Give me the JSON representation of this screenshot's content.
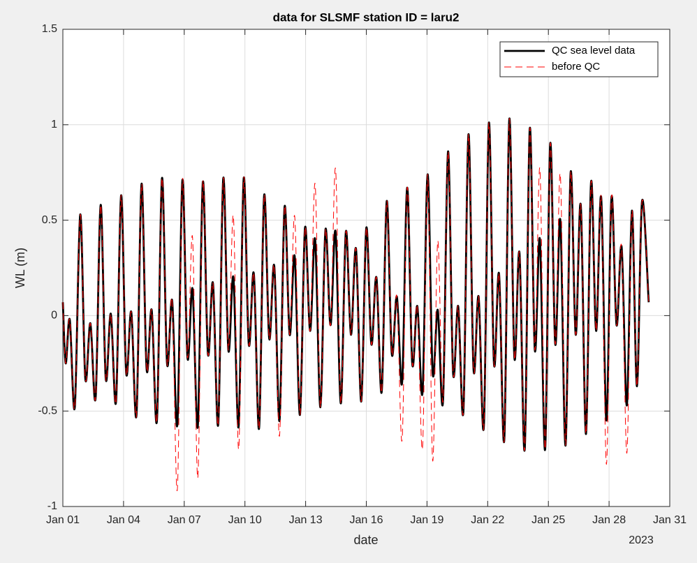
{
  "chart_data": {
    "type": "line",
    "title": "data for SLSMF station ID = laru2",
    "xlabel": "date",
    "ylabel": "WL (m)",
    "x_secondary_label": "2023",
    "xlim": [
      1,
      31
    ],
    "ylim": [
      -1,
      1.5
    ],
    "xticks": [
      {
        "value": 1,
        "label": "Jan 01"
      },
      {
        "value": 4,
        "label": "Jan 04"
      },
      {
        "value": 7,
        "label": "Jan 07"
      },
      {
        "value": 10,
        "label": "Jan 10"
      },
      {
        "value": 13,
        "label": "Jan 13"
      },
      {
        "value": 16,
        "label": "Jan 16"
      },
      {
        "value": 19,
        "label": "Jan 19"
      },
      {
        "value": 22,
        "label": "Jan 22"
      },
      {
        "value": 25,
        "label": "Jan 25"
      },
      {
        "value": 28,
        "label": "Jan 28"
      },
      {
        "value": 31,
        "label": "Jan 31"
      }
    ],
    "yticks": [
      -1,
      -0.5,
      0,
      0.5,
      1,
      1.5
    ],
    "grid": true,
    "legend_position": "northeast",
    "x": [
      1.0,
      1.14,
      1.34,
      1.59,
      1.86,
      2.11,
      2.36,
      2.62,
      2.87,
      3.12,
      3.37,
      3.63,
      3.88,
      4.13,
      4.38,
      4.64,
      4.89,
      5.14,
      5.39,
      5.65,
      5.9,
      6.15,
      6.4,
      6.66,
      6.91,
      7.16,
      7.41,
      7.67,
      7.92,
      8.17,
      8.42,
      8.68,
      8.93,
      9.18,
      9.43,
      9.69,
      9.94,
      10.19,
      10.44,
      10.7,
      10.95,
      11.2,
      11.45,
      11.71,
      11.96,
      12.21,
      12.46,
      12.72,
      12.97,
      13.22,
      13.47,
      13.73,
      13.98,
      14.23,
      14.48,
      14.74,
      14.99,
      15.24,
      15.49,
      15.75,
      16.0,
      16.25,
      16.5,
      16.76,
      17.01,
      17.26,
      17.51,
      17.77,
      18.02,
      18.27,
      18.52,
      18.78,
      19.03,
      19.28,
      19.53,
      19.79,
      20.04,
      20.29,
      20.54,
      20.8,
      21.05,
      21.3,
      21.55,
      21.81,
      22.06,
      22.31,
      22.56,
      22.82,
      23.07,
      23.32,
      23.57,
      23.83,
      24.08,
      24.33,
      24.58,
      24.84,
      25.09,
      25.34,
      25.59,
      25.85,
      26.1,
      26.35,
      26.6,
      26.86,
      27.11,
      27.36,
      27.61,
      27.87,
      28.12,
      28.37,
      28.62,
      28.88,
      29.13,
      29.38,
      29.63,
      29.96
    ],
    "series": [
      {
        "name": "QC sea level data",
        "color": "#000000",
        "style": "solid",
        "values": [
          0.07,
          -0.25,
          -0.02,
          -0.48,
          0.53,
          -0.33,
          -0.04,
          -0.43,
          0.58,
          -0.33,
          0.01,
          -0.45,
          0.63,
          -0.3,
          0.02,
          -0.52,
          0.69,
          -0.28,
          0.03,
          -0.55,
          0.72,
          -0.25,
          0.08,
          -0.57,
          0.71,
          -0.22,
          0.14,
          -0.58,
          0.7,
          -0.2,
          0.17,
          -0.57,
          0.72,
          -0.18,
          0.2,
          -0.58,
          0.72,
          -0.15,
          0.22,
          -0.59,
          0.63,
          -0.12,
          0.26,
          -0.55,
          0.57,
          -0.1,
          0.31,
          -0.52,
          0.46,
          -0.08,
          0.4,
          -0.48,
          0.45,
          -0.05,
          0.44,
          -0.46,
          0.44,
          -0.1,
          0.35,
          -0.45,
          0.46,
          -0.15,
          0.2,
          -0.4,
          0.6,
          -0.2,
          0.1,
          -0.35,
          0.67,
          -0.25,
          0.05,
          -0.4,
          0.74,
          -0.3,
          0.03,
          -0.45,
          0.86,
          -0.3,
          0.05,
          -0.5,
          0.95,
          -0.28,
          0.1,
          -0.58,
          1.01,
          -0.25,
          0.22,
          -0.65,
          1.03,
          -0.22,
          0.33,
          -0.7,
          0.98,
          -0.18,
          0.4,
          -0.7,
          0.9,
          -0.15,
          0.5,
          -0.68,
          0.75,
          -0.1,
          0.58,
          -0.62,
          0.7,
          -0.08,
          0.62,
          -0.55,
          0.62,
          -0.05,
          0.36,
          -0.47,
          0.55,
          -0.37,
          0.6,
          0.07
        ]
      },
      {
        "name": "before QC",
        "color": "#ff0000",
        "style": "dashed",
        "values": [
          0.07,
          -0.25,
          -0.02,
          -0.48,
          0.53,
          -0.33,
          -0.04,
          -0.43,
          0.58,
          -0.33,
          0.01,
          -0.45,
          0.63,
          -0.3,
          0.02,
          -0.52,
          0.69,
          -0.28,
          0.03,
          -0.55,
          0.72,
          -0.25,
          0.08,
          -0.91,
          0.71,
          -0.22,
          0.41,
          -0.85,
          0.7,
          -0.2,
          0.17,
          -0.57,
          0.72,
          -0.18,
          0.52,
          -0.7,
          0.72,
          -0.15,
          0.22,
          -0.59,
          0.63,
          -0.12,
          0.26,
          -0.63,
          0.57,
          -0.1,
          0.52,
          -0.52,
          0.46,
          -0.08,
          0.69,
          -0.48,
          0.45,
          -0.05,
          0.77,
          -0.46,
          0.44,
          -0.1,
          0.35,
          -0.45,
          0.46,
          -0.15,
          0.2,
          -0.4,
          0.6,
          -0.2,
          0.1,
          -0.65,
          0.67,
          -0.25,
          0.05,
          -0.69,
          0.74,
          -0.76,
          0.39,
          -0.45,
          0.86,
          -0.3,
          0.05,
          -0.5,
          0.95,
          -0.28,
          0.1,
          -0.58,
          1.01,
          -0.25,
          0.22,
          -0.65,
          1.03,
          -0.22,
          0.33,
          -0.7,
          0.98,
          -0.18,
          0.77,
          -0.7,
          0.9,
          -0.15,
          0.74,
          -0.68,
          0.75,
          -0.1,
          0.58,
          -0.62,
          0.7,
          -0.08,
          0.62,
          -0.78,
          0.62,
          -0.05,
          0.36,
          -0.72,
          0.55,
          -0.37,
          0.6,
          0.07
        ]
      }
    ]
  }
}
